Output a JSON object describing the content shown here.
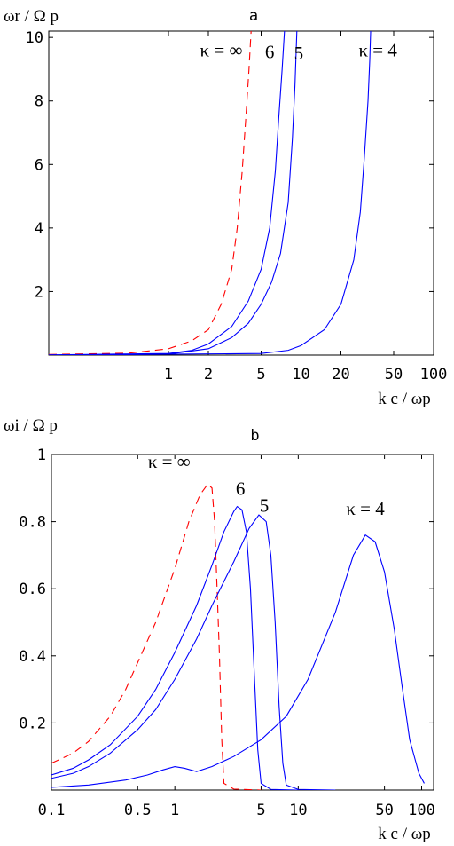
{
  "chart_data": [
    {
      "type": "line",
      "title": "a",
      "ylabel": "ωr / Ω p",
      "xlabel": "k c / ωp",
      "x_scale": "log",
      "xlim": [
        0.125,
        100
      ],
      "ylim": [
        0,
        10.2
      ],
      "x_ticks": [
        1,
        2,
        5,
        10,
        20,
        50,
        100
      ],
      "x_tick_labels": [
        "1",
        "2",
        "5",
        "10",
        "20",
        "50",
        "100"
      ],
      "y_ticks": [
        2,
        4,
        6,
        8,
        10
      ],
      "y_tick_labels": [
        "2",
        "4",
        "6",
        "8",
        "10"
      ],
      "grid": false,
      "annotations": [
        {
          "text": "κ = ∞",
          "x": 2.5,
          "y": 9.4
        },
        {
          "text": "6",
          "x": 5.8,
          "y": 9.35
        },
        {
          "text": "5",
          "x": 9.6,
          "y": 9.3
        },
        {
          "text": "κ = 4",
          "x": 38,
          "y": 9.4
        }
      ],
      "series": [
        {
          "color": "#ff0000",
          "dash": true,
          "points": [
            [
              0.125,
              0.02
            ],
            [
              0.5,
              0.06
            ],
            [
              1,
              0.2
            ],
            [
              1.5,
              0.45
            ],
            [
              2,
              0.8
            ],
            [
              2.5,
              1.6
            ],
            [
              3,
              2.7
            ],
            [
              3.3,
              4.0
            ],
            [
              3.6,
              5.8
            ],
            [
              3.85,
              7.6
            ],
            [
              4.05,
              9.0
            ],
            [
              4.2,
              10.2
            ]
          ]
        },
        {
          "color": "#0000ff",
          "dash": false,
          "points": [
            [
              0.125,
              0.005
            ],
            [
              1,
              0.05
            ],
            [
              1.5,
              0.15
            ],
            [
              2,
              0.35
            ],
            [
              3,
              0.9
            ],
            [
              4,
              1.7
            ],
            [
              5,
              2.7
            ],
            [
              5.8,
              4.0
            ],
            [
              6.4,
              5.8
            ],
            [
              6.8,
              7.5
            ],
            [
              7.2,
              9.0
            ],
            [
              7.5,
              10.2
            ]
          ]
        },
        {
          "color": "#0000ff",
          "dash": false,
          "points": [
            [
              0.125,
              0.003
            ],
            [
              1,
              0.03
            ],
            [
              2,
              0.2
            ],
            [
              3,
              0.55
            ],
            [
              4,
              1.0
            ],
            [
              5,
              1.6
            ],
            [
              6,
              2.3
            ],
            [
              7,
              3.2
            ],
            [
              8,
              4.8
            ],
            [
              8.6,
              6.8
            ],
            [
              9,
              8.5
            ],
            [
              9.3,
              10.2
            ]
          ]
        },
        {
          "color": "#0000ff",
          "dash": false,
          "points": [
            [
              0.125,
              0.0
            ],
            [
              5,
              0.05
            ],
            [
              8,
              0.15
            ],
            [
              10,
              0.3
            ],
            [
              15,
              0.8
            ],
            [
              20,
              1.6
            ],
            [
              25,
              3.0
            ],
            [
              28,
              4.5
            ],
            [
              30,
              6.2
            ],
            [
              32,
              8.0
            ],
            [
              33,
              9.3
            ],
            [
              33.5,
              10.2
            ]
          ]
        }
      ]
    },
    {
      "type": "line",
      "title": "b",
      "ylabel": "ωi / Ω p",
      "xlabel": "k c / ωp",
      "x_scale": "log",
      "xlim": [
        0.1,
        125
      ],
      "ylim": [
        0,
        1
      ],
      "x_ticks": [
        0.1,
        0.5,
        1,
        5,
        10,
        50,
        100
      ],
      "x_tick_labels": [
        "0.1",
        "0.5",
        "1",
        "5",
        "10",
        "50",
        "100"
      ],
      "y_ticks": [
        0.2,
        0.4,
        0.6,
        0.8,
        1
      ],
      "y_tick_labels": [
        "0.2",
        "0.4",
        "0.6",
        "0.8",
        "1"
      ],
      "grid": false,
      "annotations": [
        {
          "text": "κ = ∞",
          "x": 0.9,
          "y": 0.96
        },
        {
          "text": "6",
          "x": 3.4,
          "y": 0.88
        },
        {
          "text": "5",
          "x": 5.3,
          "y": 0.83
        },
        {
          "text": "κ = 4",
          "x": 35,
          "y": 0.82
        }
      ],
      "series": [
        {
          "color": "#ff0000",
          "dash": true,
          "points": [
            [
              0.1,
              0.08
            ],
            [
              0.15,
              0.11
            ],
            [
              0.2,
              0.145
            ],
            [
              0.3,
              0.22
            ],
            [
              0.4,
              0.3
            ],
            [
              0.5,
              0.38
            ],
            [
              0.7,
              0.5
            ],
            [
              1,
              0.66
            ],
            [
              1.3,
              0.8
            ],
            [
              1.6,
              0.88
            ],
            [
              1.85,
              0.912
            ],
            [
              2.0,
              0.9
            ],
            [
              2.1,
              0.8
            ],
            [
              2.2,
              0.6
            ],
            [
              2.3,
              0.4
            ],
            [
              2.4,
              0.15
            ],
            [
              2.5,
              0.02
            ],
            [
              3,
              0.003
            ],
            [
              5,
              0
            ]
          ]
        },
        {
          "color": "#0000ff",
          "dash": false,
          "points": [
            [
              0.1,
              0.045
            ],
            [
              0.15,
              0.065
            ],
            [
              0.2,
              0.09
            ],
            [
              0.3,
              0.135
            ],
            [
              0.5,
              0.22
            ],
            [
              0.7,
              0.3
            ],
            [
              1,
              0.41
            ],
            [
              1.5,
              0.55
            ],
            [
              2,
              0.67
            ],
            [
              2.5,
              0.77
            ],
            [
              3,
              0.83
            ],
            [
              3.2,
              0.845
            ],
            [
              3.5,
              0.835
            ],
            [
              3.8,
              0.77
            ],
            [
              4.1,
              0.6
            ],
            [
              4.4,
              0.35
            ],
            [
              4.7,
              0.12
            ],
            [
              5,
              0.02
            ],
            [
              6,
              0.002
            ],
            [
              10,
              0
            ]
          ]
        },
        {
          "color": "#0000ff",
          "dash": false,
          "points": [
            [
              0.1,
              0.035
            ],
            [
              0.15,
              0.05
            ],
            [
              0.2,
              0.07
            ],
            [
              0.3,
              0.11
            ],
            [
              0.5,
              0.18
            ],
            [
              0.7,
              0.24
            ],
            [
              1,
              0.33
            ],
            [
              1.5,
              0.45
            ],
            [
              2,
              0.55
            ],
            [
              3,
              0.68
            ],
            [
              4,
              0.78
            ],
            [
              4.8,
              0.82
            ],
            [
              5.5,
              0.8
            ],
            [
              6,
              0.7
            ],
            [
              6.5,
              0.5
            ],
            [
              7,
              0.25
            ],
            [
              7.5,
              0.08
            ],
            [
              8,
              0.015
            ],
            [
              10,
              0.002
            ],
            [
              20,
              0
            ]
          ]
        },
        {
          "color": "#0000ff",
          "dash": false,
          "points": [
            [
              0.1,
              0.008
            ],
            [
              0.2,
              0.015
            ],
            [
              0.4,
              0.03
            ],
            [
              0.6,
              0.045
            ],
            [
              0.8,
              0.06
            ],
            [
              1,
              0.07
            ],
            [
              1.2,
              0.065
            ],
            [
              1.5,
              0.055
            ],
            [
              2,
              0.07
            ],
            [
              3,
              0.1
            ],
            [
              5,
              0.15
            ],
            [
              8,
              0.22
            ],
            [
              12,
              0.33
            ],
            [
              20,
              0.53
            ],
            [
              28,
              0.7
            ],
            [
              35,
              0.76
            ],
            [
              42,
              0.74
            ],
            [
              50,
              0.65
            ],
            [
              60,
              0.48
            ],
            [
              70,
              0.3
            ],
            [
              80,
              0.15
            ],
            [
              95,
              0.05
            ],
            [
              105,
              0.02
            ]
          ]
        }
      ]
    }
  ]
}
